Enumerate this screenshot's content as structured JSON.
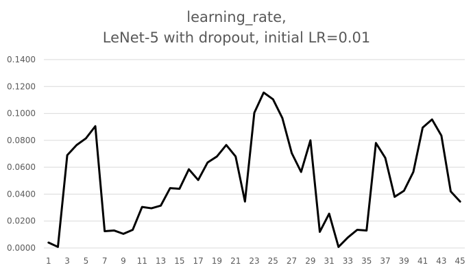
{
  "chart_data": {
    "type": "line",
    "title_lines": [
      "learning_rate,",
      "LeNet-5 with dropout, initial LR=0.01"
    ],
    "xlabel": "",
    "ylabel": "",
    "x": [
      1,
      2,
      3,
      4,
      5,
      6,
      7,
      8,
      9,
      10,
      11,
      12,
      13,
      14,
      15,
      16,
      17,
      18,
      19,
      20,
      21,
      22,
      23,
      24,
      25,
      26,
      27,
      28,
      29,
      30,
      31,
      32,
      33,
      34,
      35,
      36,
      37,
      38,
      39,
      40,
      41,
      42,
      43,
      44,
      45
    ],
    "x_tick_labels": [
      "1",
      "3",
      "5",
      "7",
      "9",
      "11",
      "13",
      "15",
      "17",
      "19",
      "21",
      "23",
      "25",
      "27",
      "29",
      "31",
      "33",
      "35",
      "37",
      "39",
      "41",
      "43",
      "45"
    ],
    "y_tick_labels": [
      "0.0000",
      "0.0200",
      "0.0400",
      "0.0600",
      "0.0800",
      "0.1000",
      "0.1200",
      "0.1400"
    ],
    "ylim": [
      0,
      0.14
    ],
    "y_tick_step": 0.02,
    "grid": true,
    "legend": "none",
    "series": [
      {
        "values": [
          0.004,
          0.0008,
          0.069,
          0.0765,
          0.0815,
          0.0905,
          0.0125,
          0.013,
          0.0105,
          0.0135,
          0.0305,
          0.0295,
          0.0315,
          0.0445,
          0.044,
          0.0585,
          0.0505,
          0.0635,
          0.068,
          0.0765,
          0.068,
          0.0345,
          0.1005,
          0.1155,
          0.1105,
          0.0965,
          0.0705,
          0.0565,
          0.08,
          0.012,
          0.0255,
          0.0008,
          0.0078,
          0.0135,
          0.013,
          0.078,
          0.067,
          0.038,
          0.0425,
          0.0565,
          0.0895,
          0.0955,
          0.0835,
          0.042,
          0.0345
        ]
      }
    ],
    "colors": {
      "series": "#000000",
      "grid": "#d9d9d9",
      "text": "#595959"
    }
  }
}
